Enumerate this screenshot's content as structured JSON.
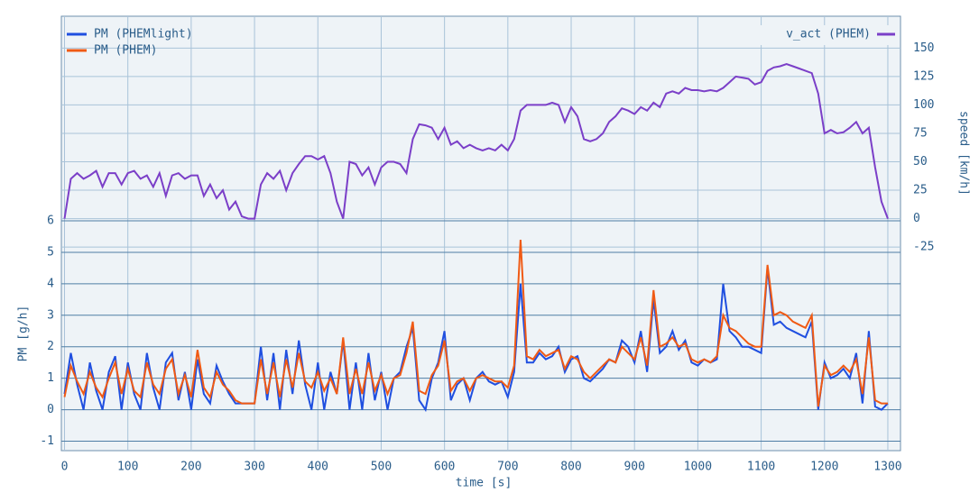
{
  "chart_data": {
    "type": "line",
    "x_label": "time [s]",
    "y_label": "PM [g/h]",
    "y2_label": "speed [km/h]",
    "xlim": [
      -5,
      1320
    ],
    "xticks": [
      0,
      100,
      200,
      300,
      400,
      500,
      600,
      700,
      800,
      900,
      1000,
      1100,
      1200,
      1300
    ],
    "ylim": [
      -1.3,
      12.5
    ],
    "yticks": [
      -1,
      0,
      1,
      2,
      3,
      4,
      5,
      6
    ],
    "y2lim": [
      -204,
      178
    ],
    "y2ticks": [
      -25,
      0,
      25,
      50,
      75,
      100,
      125,
      150
    ],
    "grid": true,
    "x": [
      0,
      10,
      20,
      30,
      40,
      50,
      60,
      70,
      80,
      90,
      100,
      110,
      120,
      130,
      140,
      150,
      160,
      170,
      180,
      190,
      200,
      210,
      220,
      230,
      240,
      250,
      260,
      270,
      280,
      290,
      300,
      310,
      320,
      330,
      340,
      350,
      360,
      370,
      380,
      390,
      400,
      410,
      420,
      430,
      440,
      450,
      460,
      470,
      480,
      490,
      500,
      510,
      520,
      530,
      540,
      550,
      560,
      570,
      580,
      590,
      600,
      610,
      620,
      630,
      640,
      650,
      660,
      670,
      680,
      690,
      700,
      710,
      720,
      730,
      740,
      750,
      760,
      770,
      780,
      790,
      800,
      810,
      820,
      830,
      840,
      850,
      860,
      870,
      880,
      890,
      900,
      910,
      920,
      930,
      940,
      950,
      960,
      970,
      980,
      990,
      1000,
      1010,
      1020,
      1030,
      1040,
      1050,
      1060,
      1070,
      1080,
      1090,
      1100,
      1110,
      1120,
      1130,
      1140,
      1150,
      1160,
      1170,
      1180,
      1190,
      1200,
      1210,
      1220,
      1230,
      1240,
      1250,
      1260,
      1270,
      1280,
      1290,
      1300
    ],
    "series": [
      {
        "name": "PM (PHEMlight)",
        "color": "#1f4fe0",
        "axis": "y",
        "values": [
          0.5,
          1.8,
          0.8,
          0,
          1.5,
          0.6,
          0,
          1.2,
          1.7,
          0,
          1.5,
          0.5,
          0,
          1.8,
          0.7,
          0,
          1.5,
          1.8,
          0.3,
          1.2,
          0,
          1.6,
          0.5,
          0.2,
          1.4,
          0.9,
          0.5,
          0.2,
          0.2,
          0.2,
          0.2,
          2.0,
          0.3,
          1.8,
          0,
          1.9,
          0.5,
          2.2,
          0.8,
          0,
          1.5,
          0,
          1.2,
          0.5,
          2.2,
          0,
          1.5,
          0,
          1.8,
          0.3,
          1.2,
          0,
          1.0,
          1.2,
          2.0,
          2.6,
          0.3,
          0,
          1.0,
          1.5,
          2.5,
          0.3,
          0.8,
          1.0,
          0.3,
          1.0,
          1.2,
          0.9,
          0.8,
          0.9,
          0.4,
          1.2,
          4.0,
          1.5,
          1.5,
          1.8,
          1.6,
          1.7,
          2.0,
          1.2,
          1.6,
          1.7,
          1.0,
          0.9,
          1.1,
          1.3,
          1.6,
          1.5,
          2.2,
          2.0,
          1.5,
          2.5,
          1.2,
          3.5,
          1.8,
          2.0,
          2.5,
          1.9,
          2.2,
          1.5,
          1.4,
          1.6,
          1.5,
          1.6,
          4.0,
          2.5,
          2.3,
          2.0,
          2.0,
          1.9,
          1.8,
          4.5,
          2.7,
          2.8,
          2.6,
          2.5,
          2.4,
          2.3,
          2.8,
          0,
          1.5,
          1.0,
          1.1,
          1.3,
          1.0,
          1.8,
          0.2,
          2.5,
          0.1,
          0,
          0.2
        ]
      },
      {
        "name": "PM (PHEM)",
        "color": "#f05a14",
        "axis": "y",
        "values": [
          0.4,
          1.4,
          0.9,
          0.5,
          1.2,
          0.7,
          0.4,
          1.0,
          1.5,
          0.5,
          1.3,
          0.6,
          0.4,
          1.5,
          0.8,
          0.5,
          1.3,
          1.6,
          0.5,
          1.1,
          0.4,
          1.9,
          0.7,
          0.4,
          1.2,
          0.8,
          0.6,
          0.3,
          0.2,
          0.2,
          0.2,
          1.6,
          0.5,
          1.5,
          0.4,
          1.6,
          0.7,
          1.8,
          0.9,
          0.7,
          1.2,
          0.6,
          1.0,
          0.5,
          2.3,
          0.5,
          1.3,
          0.5,
          1.5,
          0.6,
          1.1,
          0.5,
          1.0,
          1.1,
          1.8,
          2.8,
          0.6,
          0.5,
          1.1,
          1.4,
          2.2,
          0.6,
          0.9,
          1.0,
          0.6,
          1.0,
          1.1,
          1.0,
          0.9,
          0.9,
          0.7,
          1.4,
          5.4,
          1.7,
          1.6,
          1.9,
          1.7,
          1.8,
          1.9,
          1.3,
          1.7,
          1.6,
          1.2,
          1.0,
          1.2,
          1.4,
          1.6,
          1.5,
          2.0,
          1.8,
          1.6,
          2.3,
          1.4,
          3.8,
          2.0,
          2.1,
          2.3,
          2.0,
          2.1,
          1.6,
          1.5,
          1.6,
          1.5,
          1.7,
          3.0,
          2.6,
          2.5,
          2.3,
          2.1,
          2.0,
          2.0,
          4.6,
          3.0,
          3.1,
          3.0,
          2.8,
          2.7,
          2.6,
          3.0,
          0.1,
          1.4,
          1.1,
          1.2,
          1.4,
          1.2,
          1.6,
          0.5,
          2.3,
          0.3,
          0.2,
          0.2
        ]
      },
      {
        "name": "v_act (PHEM)",
        "color": "#7b3fc8",
        "axis": "y2",
        "values": [
          0,
          35,
          40,
          35,
          38,
          42,
          28,
          40,
          40,
          30,
          40,
          42,
          35,
          38,
          28,
          40,
          20,
          38,
          40,
          35,
          38,
          38,
          20,
          30,
          18,
          25,
          8,
          15,
          2,
          0,
          0,
          30,
          40,
          35,
          42,
          25,
          40,
          48,
          55,
          55,
          52,
          55,
          40,
          15,
          0,
          50,
          48,
          38,
          45,
          30,
          45,
          50,
          50,
          48,
          40,
          70,
          83,
          82,
          80,
          70,
          80,
          65,
          68,
          62,
          65,
          62,
          60,
          62,
          60,
          65,
          60,
          70,
          95,
          100,
          100,
          100,
          100,
          102,
          100,
          85,
          98,
          90,
          70,
          68,
          70,
          75,
          85,
          90,
          97,
          95,
          92,
          98,
          95,
          102,
          98,
          110,
          112,
          110,
          115,
          113,
          113,
          112,
          113,
          112,
          115,
          120,
          125,
          124,
          123,
          118,
          120,
          130,
          133,
          134,
          136,
          134,
          132,
          130,
          128,
          110,
          75,
          78,
          75,
          76,
          80,
          85,
          75,
          80,
          45,
          15,
          0
        ]
      }
    ]
  }
}
